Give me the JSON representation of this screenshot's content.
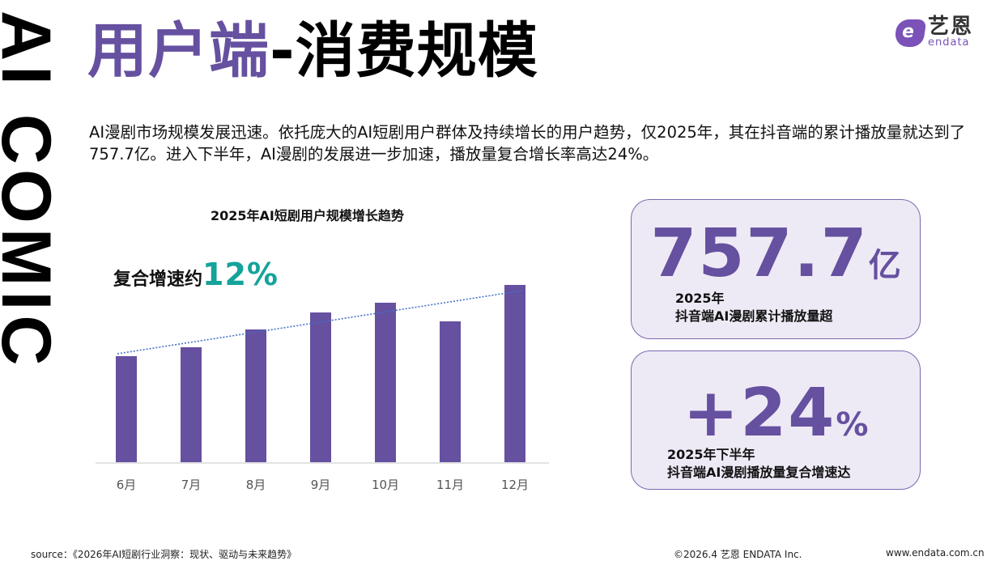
{
  "side_banner": {
    "text": "AI COMIC"
  },
  "header": {
    "title_part1": "用户端",
    "title_part2": "-消费规模",
    "logo": {
      "mark": "e",
      "cn": "艺恩",
      "en": "endata"
    }
  },
  "intro": {
    "text": "AI漫剧市场规模发展迅速。依托庞大的AI短剧用户群体及持续增长的用户趋势，仅2025年，其在抖音端的累计播放量就达到了757.7亿。进入下半年，AI漫剧的发展进一步加速，播放量复合增长率高达24%。"
  },
  "chart": {
    "title": "2025年AI短剧用户规模增长趋势",
    "cagr_label": "复合增速约",
    "cagr_value": "12%",
    "bar_color": "#6650a0",
    "trend_color": "#4472c4",
    "accent_color": "#13a39a"
  },
  "chart_data": {
    "type": "bar",
    "title": "2025年AI短剧用户规模增长趋势",
    "categories": [
      "6月",
      "7月",
      "8月",
      "9月",
      "10月",
      "11月",
      "12月"
    ],
    "values": [
      131,
      142,
      164,
      185,
      197,
      174,
      219
    ],
    "value_note": "relative bar heights (no y-axis or data labels shown)",
    "trendline": {
      "type": "linear",
      "style": "dotted",
      "start": 134,
      "end": 212
    },
    "annotation": "复合增速约12%",
    "xlabel": "",
    "ylabel": "",
    "grid": false,
    "legend": null
  },
  "cards": [
    {
      "number": "757.7",
      "unit": "亿",
      "line1": "2025年",
      "line2": "抖音端AI漫剧累计播放量超"
    },
    {
      "number": "+24",
      "unit": "%",
      "line1": "2025年下半年",
      "line2": "抖音端AI漫剧播放量复合增速达"
    }
  ],
  "footer": {
    "source": "source：《2026年AI短剧行业洞察：现状、驱动与未来趋势》",
    "copyright": "©2026.4  艺恩 ENDATA Inc.",
    "website": "www.endata.com.cn"
  }
}
